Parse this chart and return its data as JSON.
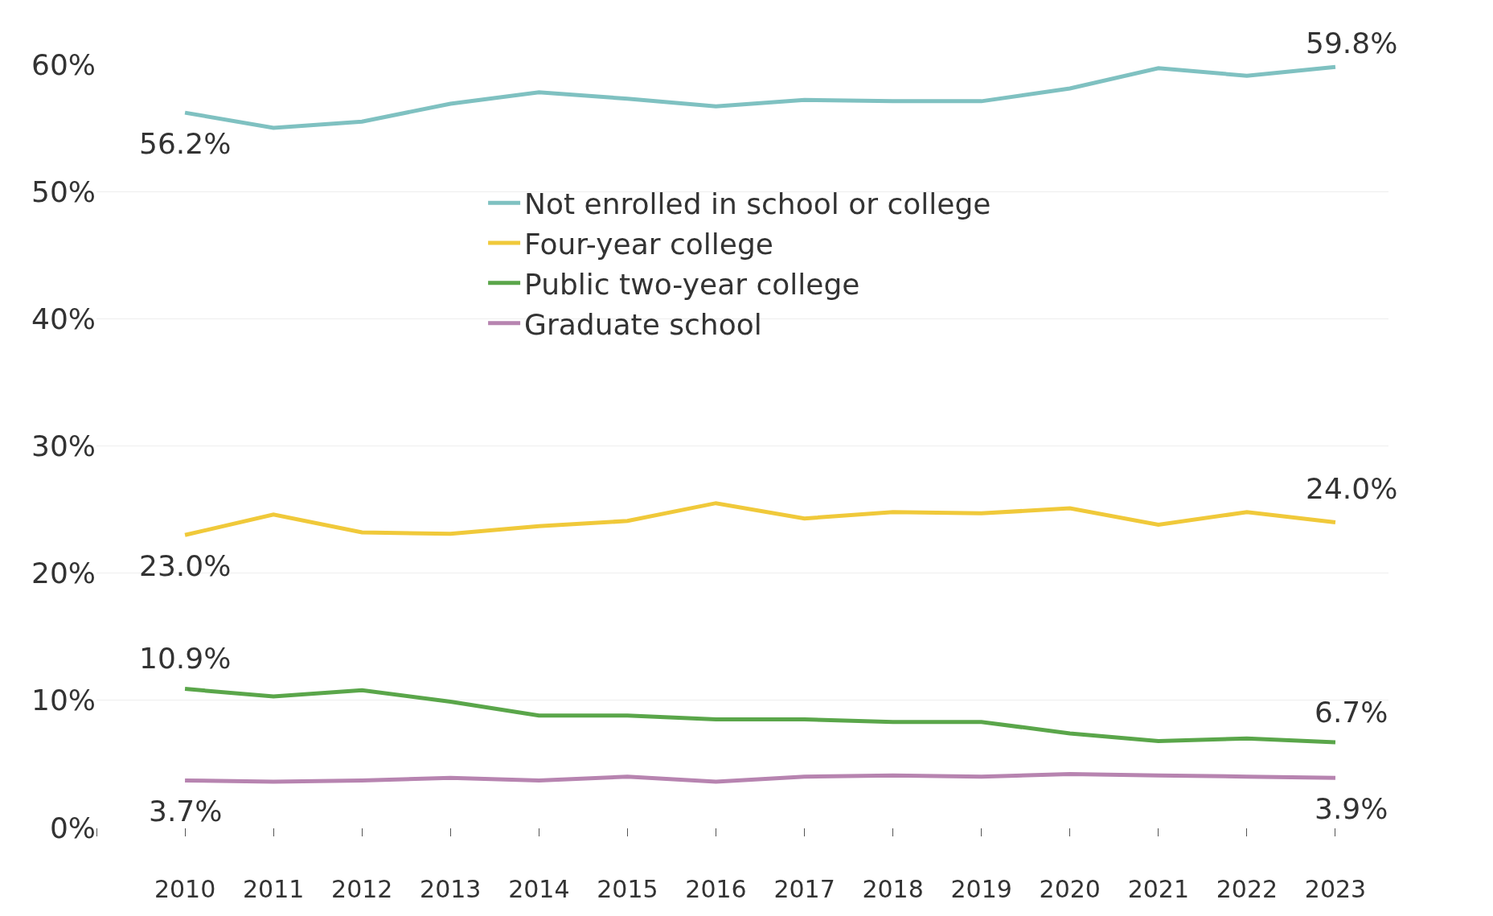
{
  "chart_data": {
    "type": "line",
    "x": [
      2010,
      2011,
      2012,
      2013,
      2014,
      2015,
      2016,
      2017,
      2018,
      2019,
      2020,
      2021,
      2022,
      2023
    ],
    "series": [
      {
        "name": "Not enrolled in school or college",
        "color": "#7fc1c1",
        "values": [
          56.2,
          55.0,
          55.5,
          56.9,
          57.8,
          57.3,
          56.7,
          57.2,
          57.1,
          57.1,
          58.1,
          59.7,
          59.1,
          59.8
        ],
        "value_labels": [
          "56.2%",
          null,
          null,
          null,
          null,
          null,
          null,
          null,
          null,
          null,
          null,
          null,
          null,
          "59.8%"
        ]
      },
      {
        "name": "Four-year college",
        "color": "#f0c93a",
        "values": [
          23.0,
          24.6,
          23.2,
          23.1,
          23.7,
          24.1,
          25.5,
          24.3,
          24.8,
          24.7,
          25.1,
          23.8,
          24.8,
          24.0
        ],
        "value_labels": [
          "23.0%",
          null,
          null,
          null,
          null,
          null,
          null,
          null,
          null,
          null,
          null,
          null,
          null,
          "24.0%"
        ]
      },
      {
        "name": "Public two-year college",
        "color": "#5aa64a",
        "values": [
          10.9,
          10.3,
          10.8,
          9.9,
          8.8,
          8.8,
          8.5,
          8.5,
          8.3,
          8.3,
          7.4,
          6.8,
          7.0,
          6.7
        ],
        "value_labels": [
          "10.9%",
          null,
          null,
          null,
          null,
          null,
          null,
          null,
          null,
          null,
          null,
          null,
          null,
          "6.7%"
        ]
      },
      {
        "name": "Graduate school",
        "color": "#b784b0",
        "values": [
          3.7,
          3.6,
          3.7,
          3.9,
          3.7,
          4.0,
          3.6,
          4.0,
          4.1,
          4.0,
          4.2,
          4.1,
          4.0,
          3.9
        ],
        "value_labels": [
          "3.7%",
          null,
          null,
          null,
          null,
          null,
          null,
          null,
          null,
          null,
          null,
          null,
          null,
          "3.9%"
        ]
      }
    ],
    "xlim": [
      2009,
      2023.6
    ],
    "xticks": [
      {
        "value": 2009,
        "label": null
      },
      2010,
      2011,
      2012,
      2013,
      2014,
      2015,
      2016,
      2017,
      2018,
      2019,
      2020,
      2021,
      2022,
      2023
    ],
    "ylim": [
      0,
      60
    ],
    "yticks": [
      {
        "value": 0,
        "label": "0%"
      },
      {
        "value": 10,
        "label": "10%"
      },
      {
        "value": 20,
        "label": "20%"
      },
      {
        "value": 30,
        "label": "30%"
      },
      {
        "value": 40,
        "label": "40%"
      },
      {
        "value": 50,
        "label": "50%"
      },
      {
        "value": 60,
        "label": "60%"
      }
    ],
    "grid": "y",
    "legend": "top",
    "marker": "none",
    "line_style": "solid"
  }
}
